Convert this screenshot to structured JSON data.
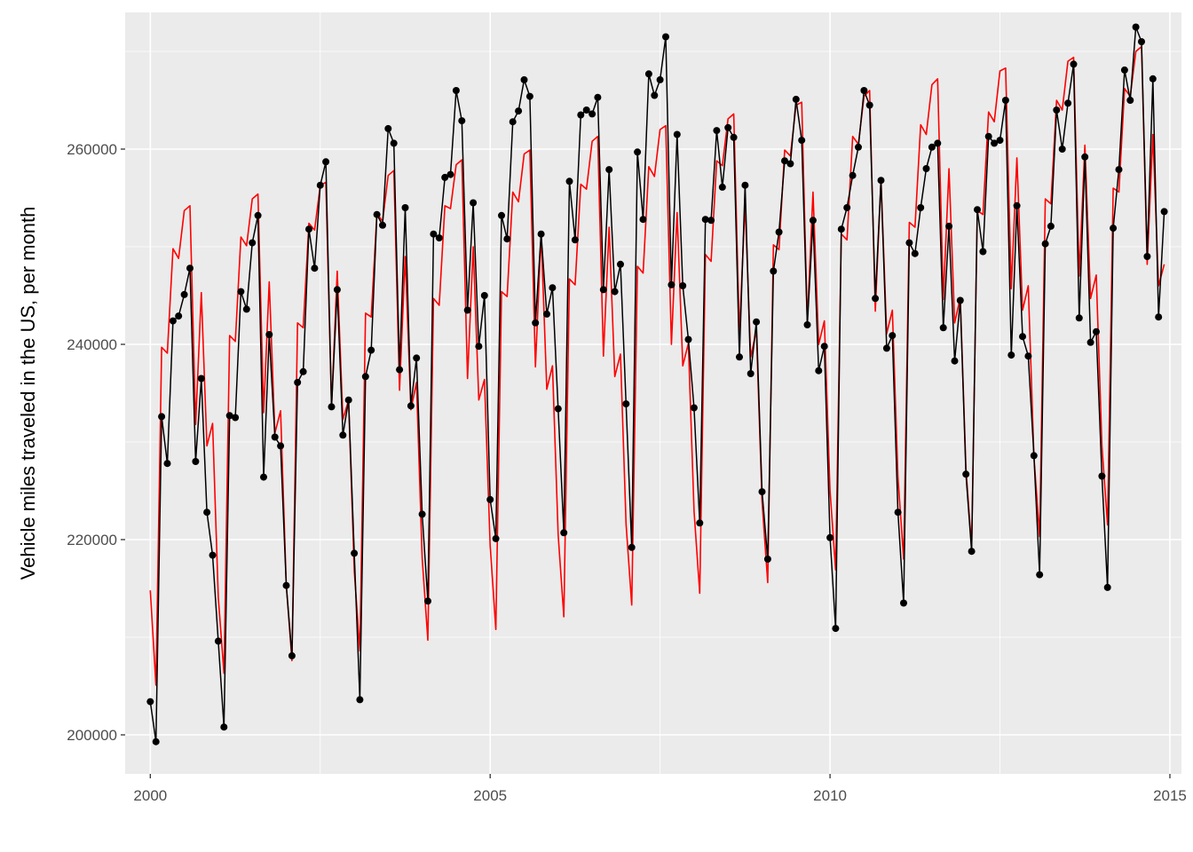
{
  "chart_data": {
    "type": "line",
    "xlabel": "",
    "ylabel": "Vehicle miles traveled in the US, per month",
    "xlim": [
      1999.63,
      2015.17
    ],
    "ylim": [
      196000,
      274000
    ],
    "x_ticks": [
      2000,
      2005,
      2010,
      2015
    ],
    "y_ticks": [
      200000,
      220000,
      240000,
      260000
    ],
    "x_tick_labels": [
      "2000",
      "2005",
      "2010",
      "2015"
    ],
    "y_tick_labels": [
      "200000",
      "220000",
      "240000",
      "260000"
    ],
    "grid": true,
    "panel_background": "#ebebeb",
    "x_start": 2000,
    "x_step": 0.08333,
    "series": [
      {
        "color": "#000000",
        "points": true,
        "values": [
          203400,
          199300,
          232600,
          227800,
          242400,
          242900,
          245100,
          247800,
          228000,
          236500,
          222800,
          218400,
          209600,
          200800,
          232700,
          232500,
          245400,
          243600,
          250400,
          253200,
          226400,
          241000,
          230500,
          229600,
          215300,
          208100,
          236100,
          237200,
          251800,
          247800,
          256300,
          258700,
          233600,
          245600,
          230700,
          234300,
          218600,
          203600,
          236700,
          239400,
          253300,
          252200,
          262100,
          260600,
          237400,
          254000,
          233700,
          238600,
          222600,
          213700,
          251300,
          250900,
          257100,
          257400,
          266000,
          262900,
          243500,
          254500,
          239800,
          245000,
          224100,
          220100,
          253200,
          250800,
          262800,
          263900,
          267100,
          265400,
          242200,
          251300,
          243100,
          245800,
          233400,
          220700,
          256700,
          250700,
          263500,
          264000,
          263600,
          265300,
          245600,
          257900,
          245400,
          248200,
          233900,
          219200,
          259700,
          252800,
          267700,
          265500,
          267100,
          271500,
          246100,
          261500,
          246000,
          240500,
          233500,
          221700,
          252800,
          252700,
          261900,
          256100,
          262200,
          261200,
          238700,
          256300,
          237000,
          242300,
          224900,
          218000,
          247500,
          251500,
          258800,
          258500,
          265100,
          260900,
          242000,
          252700,
          237300,
          239800,
          220200,
          210900,
          251800,
          254000,
          257300,
          260200,
          266000,
          264500,
          244700,
          256800,
          239600,
          240900,
          222800,
          213500,
          250400,
          249300,
          254000,
          258000,
          260200,
          260600,
          241700,
          252100,
          238300,
          244500,
          226700,
          218800,
          253800,
          249500,
          261300,
          260600,
          260900,
          265000,
          238900,
          254200,
          240800,
          238800,
          228600,
          216400,
          250300,
          252100,
          264000,
          260000,
          264700,
          268700,
          242700,
          259200,
          240200,
          241300,
          226500,
          215100,
          251900,
          257900,
          268100,
          265000,
          272500,
          271000,
          249000,
          267200,
          242800,
          253600
        ]
      },
      {
        "color": "#ff0000",
        "points": false,
        "values": [
          214800,
          205100,
          239700,
          239100,
          249800,
          248800,
          253700,
          254200,
          231800,
          245300,
          229600,
          231900,
          214100,
          206300,
          240900,
          240300,
          251000,
          250100,
          254900,
          255400,
          233000,
          246400,
          230900,
          233200,
          215400,
          207600,
          242200,
          241700,
          252400,
          251700,
          256300,
          256600,
          233600,
          247500,
          232300,
          234300,
          216800,
          208600,
          243200,
          242800,
          253400,
          252600,
          257300,
          257800,
          235300,
          249000,
          233300,
          236100,
          218100,
          209700,
          244700,
          244000,
          254200,
          253900,
          258400,
          258900,
          236500,
          250000,
          234300,
          236400,
          219400,
          210800,
          245400,
          244900,
          255600,
          254600,
          259500,
          259900,
          237700,
          251400,
          235400,
          237800,
          220500,
          212100,
          246700,
          246100,
          256400,
          255900,
          260800,
          261300,
          238800,
          252000,
          236700,
          239000,
          221600,
          213300,
          248000,
          247300,
          258200,
          257200,
          262000,
          262400,
          240000,
          253500,
          237800,
          240100,
          222900,
          214500,
          249200,
          248500,
          258800,
          258300,
          263100,
          263600,
          241100,
          254500,
          238700,
          241400,
          223900,
          215600,
          250200,
          249700,
          259900,
          259300,
          264500,
          264800,
          242300,
          255600,
          240000,
          242400,
          225000,
          216900,
          251300,
          250700,
          261300,
          260500,
          265400,
          266000,
          243400,
          256900,
          241100,
          243500,
          226400,
          218000,
          252500,
          252000,
          262500,
          261500,
          266600,
          267200,
          244600,
          258000,
          242200,
          244800,
          227300,
          219100,
          253700,
          253300,
          263800,
          262800,
          268000,
          268300,
          245700,
          259100,
          243500,
          246000,
          228500,
          220300,
          254900,
          254400,
          265000,
          264000,
          269000,
          269400,
          247000,
          260400,
          244700,
          247100,
          229600,
          221500,
          256000,
          255600,
          266200,
          265400,
          270000,
          270500,
          248200,
          261500,
          246000,
          248200
        ]
      }
    ]
  }
}
